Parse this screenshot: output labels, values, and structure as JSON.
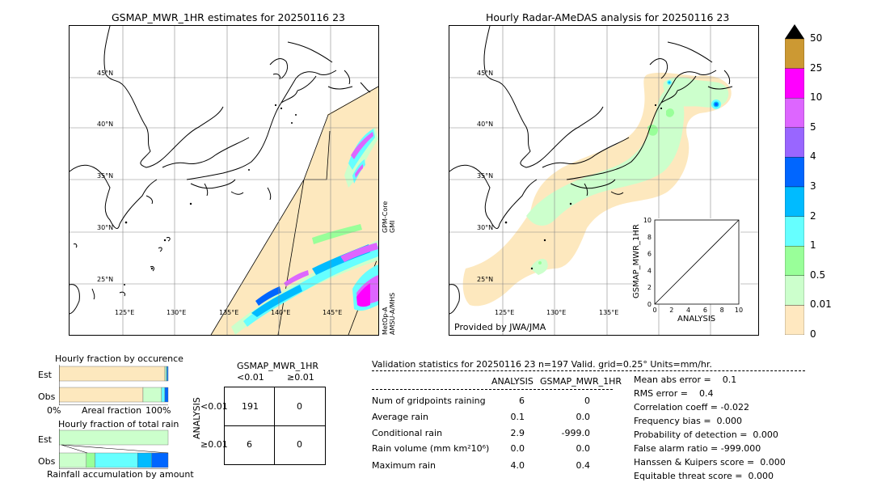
{
  "left_map": {
    "title": "GSMAP_MWR_1HR estimates for 20250116 23",
    "lat_labels": [
      "45°N",
      "40°N",
      "35°N",
      "30°N",
      "25°N"
    ],
    "lon_labels": [
      "125°E",
      "130°E",
      "135°E",
      "140°E",
      "145°E"
    ],
    "sensor_labels": [
      "GPM-Core\nGMI",
      "MetOp-A\nAMSU-A/MHS"
    ]
  },
  "right_map": {
    "title": "Hourly Radar-AMeDAS analysis for 20250116 23",
    "lat_labels": [
      "45°N",
      "40°N",
      "35°N",
      "30°N",
      "25°N"
    ],
    "lon_labels": [
      "125°E",
      "130°E",
      "135°E"
    ],
    "credit": "Provided by JWA/JMA",
    "inset": {
      "xlabel": "ANALYSIS",
      "ylabel": "GSMAP_MWR_1HR",
      "ticks": [
        "0",
        "2",
        "4",
        "6",
        "8",
        "10"
      ]
    }
  },
  "colorbar": {
    "labels": [
      "50",
      "25",
      "10",
      "5",
      "4",
      "3",
      "2",
      "1",
      "0.5",
      "0.01",
      "0"
    ],
    "colors": [
      "#cc9933",
      "#ff00ff",
      "#dd66ff",
      "#9966ff",
      "#0066ff",
      "#00bbff",
      "#66ffff",
      "#99ff99",
      "#ccffcc",
      "#ffe8c0"
    ]
  },
  "occurrence": {
    "title": "Hourly fraction by occurence",
    "rows": [
      "Est",
      "Obs"
    ],
    "axis_left": "0%",
    "axis_mid": "Areal fraction",
    "axis_right": "100%"
  },
  "total_rain": {
    "title": "Hourly fraction of total rain",
    "rows": [
      "Est",
      "Obs"
    ],
    "footer": "Rainfall accumulation by amount"
  },
  "contingency": {
    "title": "GSMAP_MWR_1HR",
    "col_headers": [
      "<0.01",
      "≥0.01"
    ],
    "row_headers": [
      "<0.01",
      "≥0.01"
    ],
    "side_label": "ANALYSIS",
    "cells": [
      [
        "191",
        "0"
      ],
      [
        "6",
        "0"
      ]
    ]
  },
  "validation": {
    "header": "Validation statistics for 20250116 23  n=197 Valid. grid=0.25° Units=mm/hr.",
    "col_headers": [
      "ANALYSIS",
      "GSMAP_MWR_1HR"
    ],
    "rows": [
      {
        "label": "Num of gridpoints raining",
        "a": "6",
        "g": "0"
      },
      {
        "label": "Average rain",
        "a": "0.1",
        "g": "0.0"
      },
      {
        "label": "Conditional rain",
        "a": "2.9",
        "g": "-999.0"
      },
      {
        "label": "Rain volume (mm km²10⁶)",
        "a": "0.0",
        "g": "0.0"
      },
      {
        "label": "Maximum rain",
        "a": "4.0",
        "g": "0.4"
      }
    ],
    "scores": [
      "Mean abs error =    0.1",
      "RMS error =    0.4",
      "Correlation coeff = -0.022",
      "Frequency bias =  0.000",
      "Probability of detection =  0.000",
      "False alarm ratio = -999.000",
      "Hanssen & Kuipers score =  0.000",
      "Equitable threat score =  0.000"
    ]
  },
  "chart_data": [
    {
      "type": "bar",
      "title": "Hourly fraction by occurence",
      "categories": [
        "Est",
        "Obs"
      ],
      "series": [
        {
          "values": [
            0.97,
            0.77
          ]
        },
        {
          "values": [
            0.01,
            0.17
          ]
        },
        {
          "values": [
            0.01,
            0.03
          ]
        },
        {
          "values": [
            0.01,
            0.03
          ]
        }
      ],
      "xlabel": "Areal fraction"
    },
    {
      "type": "bar",
      "title": "Hourly fraction of total rain",
      "categories": [
        "Est",
        "Obs"
      ],
      "series": [
        {
          "values": [
            1.0,
            0.25
          ]
        },
        {
          "values": [
            0.0,
            0.08
          ]
        },
        {
          "values": [
            0.0,
            0.39
          ]
        },
        {
          "values": [
            0.0,
            0.13
          ]
        },
        {
          "values": [
            0.0,
            0.15
          ]
        }
      ],
      "xlabel": "Rainfall accumulation by amount"
    },
    {
      "type": "scatter",
      "title": "",
      "xlabel": "ANALYSIS",
      "ylabel": "GSMAP_MWR_1HR",
      "xlim": [
        0,
        10
      ],
      "ylim": [
        0,
        10
      ],
      "x": [
        0,
        10
      ],
      "y": [
        0,
        10
      ]
    }
  ]
}
